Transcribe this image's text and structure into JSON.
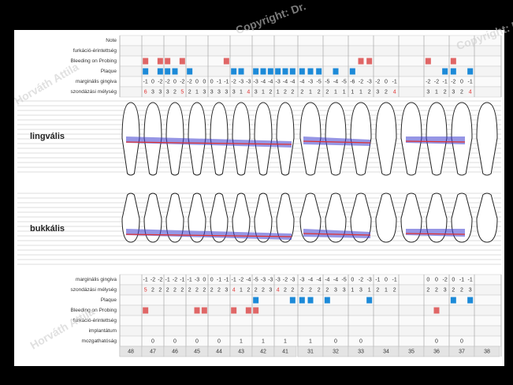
{
  "top_rows": [
    "Note",
    "furkáció-érintettség",
    "Bleeding on Probing",
    "Plaque",
    "marginális gingiva",
    "szondázási mélység"
  ],
  "bottom_rows": [
    "marginális gingiva",
    "szondázási mélység",
    "Plaque",
    "Bleeding on Probing",
    "furkáció-érintettség",
    "implantátum",
    "mozgathatóság"
  ],
  "section_labels": [
    "lingvális",
    "bukkális"
  ],
  "watermarks": [
    "Copyright: Dr.",
    "Horváth Attila",
    "Copyright: Dr.",
    "Horváth Attila"
  ],
  "teeth": [
    "48",
    "47",
    "46",
    "45",
    "44",
    "43",
    "42",
    "41",
    "31",
    "32",
    "33",
    "34",
    "35",
    "36",
    "37",
    "38"
  ],
  "top_gingiva": [
    null,
    [
      -1,
      0,
      -2
    ],
    [
      -2,
      0,
      -2
    ],
    [
      -2,
      0,
      0
    ],
    [
      0,
      -1,
      -1
    ],
    [
      -2,
      -3,
      -3
    ],
    [
      -3,
      -4,
      -4
    ],
    [
      -3,
      -4,
      -4
    ],
    [
      -4,
      -3,
      -5
    ],
    [
      -5,
      -4,
      -5
    ],
    [
      -6,
      -2,
      -3
    ],
    [
      -2,
      0,
      -1
    ],
    null,
    [
      -2,
      -2,
      -1
    ],
    [
      -2,
      0,
      -1
    ],
    null
  ],
  "top_depth": [
    null,
    [
      6,
      3,
      3
    ],
    [
      3,
      2,
      5
    ],
    [
      2,
      1,
      3
    ],
    [
      3,
      3,
      3
    ],
    [
      3,
      1,
      4
    ],
    [
      3,
      1,
      2
    ],
    [
      1,
      2,
      2
    ],
    [
      2,
      1,
      2
    ],
    [
      2,
      1,
      1
    ],
    [
      1,
      1,
      2
    ],
    [
      3,
      2,
      4
    ],
    null,
    [
      3,
      1,
      2
    ],
    [
      3,
      2,
      4
    ],
    null
  ],
  "top_bleeding": [
    null,
    [
      1,
      0,
      1
    ],
    [
      1,
      0,
      1
    ],
    [
      0,
      0,
      0
    ],
    [
      0,
      0,
      1
    ],
    [
      0,
      0,
      0
    ],
    [
      0,
      0,
      0
    ],
    [
      0,
      0,
      0
    ],
    [
      0,
      0,
      0
    ],
    [
      0,
      0,
      0
    ],
    [
      0,
      1,
      1
    ],
    [
      0,
      0,
      0
    ],
    null,
    [
      1,
      0,
      0
    ],
    [
      1,
      0,
      0
    ],
    null
  ],
  "top_plaque": [
    null,
    [
      1,
      0,
      1
    ],
    [
      1,
      1,
      0
    ],
    [
      1,
      0,
      0
    ],
    [
      0,
      0,
      0
    ],
    [
      1,
      1,
      0
    ],
    [
      1,
      1,
      1
    ],
    [
      1,
      1,
      1
    ],
    [
      1,
      1,
      1
    ],
    [
      0,
      1,
      0
    ],
    [
      1,
      0,
      0
    ],
    [
      0,
      0,
      0
    ],
    null,
    [
      0,
      0,
      1
    ],
    [
      1,
      0,
      1
    ],
    null
  ],
  "bottom_gingiva": [
    null,
    [
      -1,
      -2,
      -2
    ],
    [
      -1,
      -2,
      -1
    ],
    [
      -1,
      -3,
      0
    ],
    [
      0,
      -1,
      -1
    ],
    [
      -1,
      -2,
      -4
    ],
    [
      -5,
      -3,
      -3
    ],
    [
      -3,
      -2,
      -3
    ],
    [
      -3,
      -4,
      -4
    ],
    [
      -4,
      -4,
      -5
    ],
    [
      0,
      -2,
      -3
    ],
    [
      -1,
      0,
      -1
    ],
    null,
    [
      0,
      0,
      -2
    ],
    [
      0,
      -1,
      -1
    ],
    null
  ],
  "bottom_depth": [
    null,
    [
      5,
      2,
      2
    ],
    [
      2,
      2,
      2
    ],
    [
      2,
      2,
      2
    ],
    [
      2,
      2,
      3
    ],
    [
      4,
      1,
      2
    ],
    [
      2,
      2,
      3
    ],
    [
      4,
      2,
      2
    ],
    [
      2,
      2,
      2
    ],
    [
      2,
      3,
      3
    ],
    [
      1,
      3,
      1
    ],
    [
      2,
      1,
      2
    ],
    null,
    [
      2,
      2,
      3
    ],
    [
      2,
      2,
      3
    ],
    null
  ],
  "bottom_plaque": [
    null,
    [
      0,
      0,
      0
    ],
    [
      0,
      0,
      0
    ],
    [
      0,
      0,
      0
    ],
    [
      0,
      0,
      0
    ],
    [
      0,
      0,
      0
    ],
    [
      1,
      0,
      0
    ],
    [
      0,
      0,
      1
    ],
    [
      1,
      1,
      0
    ],
    [
      1,
      0,
      0
    ],
    [
      0,
      0,
      1
    ],
    [
      0,
      0,
      0
    ],
    null,
    [
      0,
      0,
      0
    ],
    [
      1,
      0,
      1
    ],
    null
  ],
  "bottom_bleeding": [
    null,
    [
      1,
      0,
      0
    ],
    [
      0,
      0,
      0
    ],
    [
      0,
      1,
      1
    ],
    [
      0,
      0,
      0
    ],
    [
      1,
      0,
      1
    ],
    [
      1,
      0,
      0
    ],
    [
      0,
      0,
      0
    ],
    [
      0,
      0,
      0
    ],
    [
      0,
      0,
      0
    ],
    [
      0,
      0,
      0
    ],
    [
      0,
      0,
      0
    ],
    null,
    [
      0,
      1,
      0
    ],
    [
      0,
      0,
      0
    ],
    null
  ],
  "mobility": [
    null,
    0,
    0,
    0,
    0,
    1,
    1,
    1,
    1,
    0,
    0,
    null,
    null,
    0,
    0,
    null
  ],
  "colors": {
    "bleeding": "#e06666",
    "plaque": "#1c8ad8",
    "band": "#4040d0",
    "line": "#e03030"
  }
}
